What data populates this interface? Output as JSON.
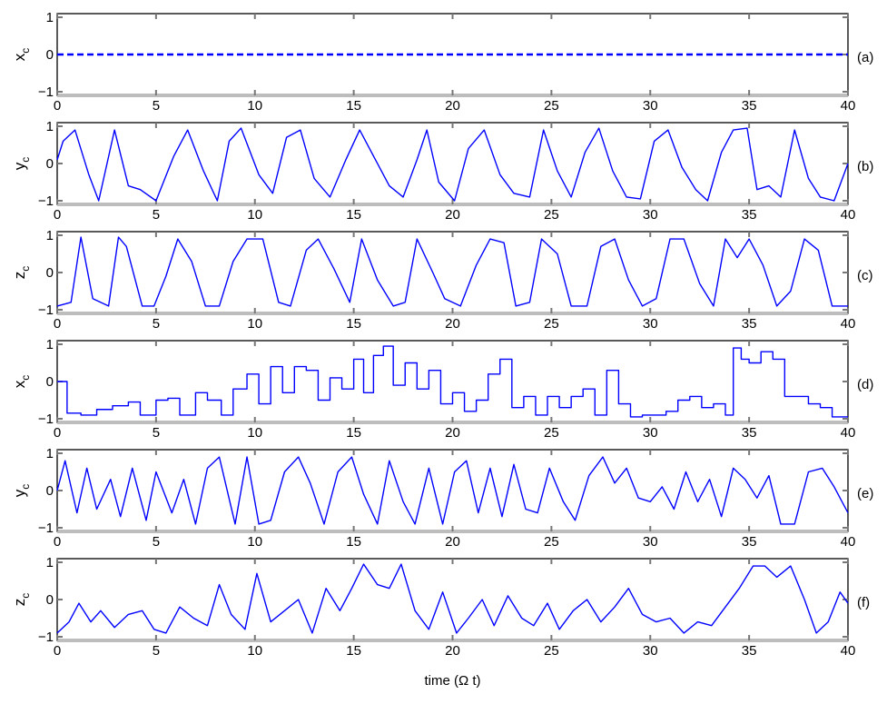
{
  "chart_data": {
    "type": "line",
    "xlabel": "time (Ω t)",
    "xlim": [
      0,
      40
    ],
    "xticks": [
      "0",
      "5",
      "10",
      "15",
      "20",
      "25",
      "30",
      "35",
      "40"
    ],
    "line_color": "#0000ff",
    "panels": [
      {
        "id": "a",
        "ylabel_main": "x",
        "ylabel_sub": "c",
        "panel_label": "(a)",
        "ylim": [
          -1,
          1
        ],
        "yticks": [
          "1",
          "0",
          "−1"
        ],
        "style": "dashed",
        "x": [
          0,
          40
        ],
        "y": [
          0,
          0
        ]
      },
      {
        "id": "b",
        "ylabel_main": "y",
        "ylabel_sub": "c",
        "panel_label": "(b)",
        "ylim": [
          -1,
          1
        ],
        "yticks": [
          "1",
          "0",
          "−1"
        ],
        "style": "solid",
        "x": [
          0,
          0.3,
          0.9,
          1.6,
          2.1,
          2.9,
          3.6,
          4.2,
          5.0,
          5.9,
          6.6,
          7.4,
          8.1,
          8.7,
          9.3,
          10.2,
          10.9,
          11.6,
          12.3,
          13.0,
          13.8,
          14.6,
          15.3,
          16.0,
          16.8,
          17.5,
          18.2,
          18.7,
          19.3,
          20.1,
          20.8,
          21.6,
          22.4,
          23.1,
          23.9,
          24.6,
          25.3,
          26.0,
          26.7,
          27.4,
          28.1,
          28.8,
          29.5,
          30.2,
          30.9,
          31.6,
          32.3,
          32.9,
          33.6,
          34.2,
          34.9,
          35.4,
          36.0,
          36.6,
          37.3,
          38.0,
          38.6,
          39.3,
          40.0
        ],
        "y": [
          0.1,
          0.6,
          0.9,
          -0.3,
          -1.0,
          0.9,
          -0.6,
          -0.7,
          -1.0,
          0.2,
          0.9,
          -0.2,
          -1.0,
          0.6,
          0.95,
          -0.3,
          -0.8,
          0.7,
          0.9,
          -0.4,
          -0.9,
          0.1,
          0.9,
          0.2,
          -0.6,
          -0.9,
          0.1,
          0.9,
          -0.5,
          -1.0,
          0.4,
          0.9,
          -0.3,
          -0.8,
          -0.9,
          0.9,
          -0.2,
          -0.9,
          0.3,
          0.95,
          -0.2,
          -0.9,
          -0.95,
          0.6,
          0.9,
          -0.1,
          -0.7,
          -1.0,
          0.3,
          0.9,
          0.95,
          -0.7,
          -0.6,
          -0.9,
          0.9,
          -0.4,
          -0.9,
          -1.0,
          0.0
        ]
      },
      {
        "id": "c",
        "ylabel_main": "z",
        "ylabel_sub": "c",
        "panel_label": "(c)",
        "ylim": [
          -1,
          1
        ],
        "yticks": [
          "1",
          "0",
          "−1"
        ],
        "style": "solid",
        "x": [
          0,
          0.7,
          1.2,
          1.8,
          2.6,
          3.1,
          3.5,
          4.3,
          4.9,
          5.5,
          6.1,
          6.8,
          7.5,
          8.2,
          8.9,
          9.6,
          10.4,
          11.2,
          11.8,
          12.6,
          13.2,
          14.0,
          14.8,
          15.4,
          16.2,
          17.0,
          17.6,
          18.2,
          19.0,
          19.6,
          20.4,
          21.2,
          21.9,
          22.6,
          23.2,
          23.9,
          24.5,
          25.3,
          26.0,
          26.8,
          27.5,
          28.2,
          28.9,
          29.6,
          30.3,
          31.0,
          31.7,
          32.5,
          33.2,
          33.8,
          34.4,
          35.0,
          35.7,
          36.4,
          37.1,
          37.8,
          38.5,
          39.2,
          40.0
        ],
        "y": [
          -0.9,
          -0.8,
          0.95,
          -0.7,
          -0.9,
          0.95,
          0.7,
          -0.9,
          -0.9,
          -0.1,
          0.9,
          0.3,
          -0.9,
          -0.9,
          0.3,
          0.9,
          0.9,
          -0.8,
          -0.9,
          0.6,
          0.9,
          0.1,
          -0.8,
          0.9,
          -0.2,
          -0.9,
          -0.8,
          0.9,
          0.0,
          -0.7,
          -0.9,
          0.2,
          0.9,
          0.8,
          -0.9,
          -0.8,
          0.9,
          0.5,
          -0.9,
          -0.9,
          0.7,
          0.9,
          -0.2,
          -0.9,
          -0.7,
          0.9,
          0.9,
          -0.3,
          -0.9,
          0.9,
          0.4,
          0.9,
          0.2,
          -0.9,
          -0.5,
          0.9,
          0.6,
          -0.9,
          -0.9
        ]
      },
      {
        "id": "d",
        "ylabel_main": "x",
        "ylabel_sub": "c",
        "panel_label": "(d)",
        "ylim": [
          -1,
          1
        ],
        "yticks": [
          "1",
          "0",
          "−1"
        ],
        "style": "step",
        "x": [
          0,
          0.5,
          1.2,
          2.0,
          2.8,
          3.6,
          4.2,
          5.0,
          5.6,
          6.2,
          7.0,
          7.6,
          8.3,
          8.9,
          9.6,
          10.2,
          10.8,
          11.4,
          12.0,
          12.6,
          13.2,
          13.8,
          14.4,
          15.0,
          15.5,
          16.0,
          16.5,
          17.0,
          17.6,
          18.2,
          18.8,
          19.4,
          20.0,
          20.6,
          21.2,
          21.8,
          22.4,
          23.0,
          23.6,
          24.2,
          24.8,
          25.4,
          26.0,
          26.6,
          27.2,
          27.8,
          28.4,
          29.0,
          29.6,
          30.2,
          30.8,
          31.4,
          32.0,
          32.6,
          33.2,
          33.8,
          34.2,
          34.6,
          35.0,
          35.6,
          36.2,
          36.8,
          37.4,
          38.0,
          38.6,
          39.2,
          39.8
        ],
        "y": [
          0.0,
          -0.85,
          -0.9,
          -0.75,
          -0.65,
          -0.55,
          -0.9,
          -0.5,
          -0.45,
          -0.9,
          -0.3,
          -0.5,
          -0.9,
          -0.2,
          0.2,
          -0.6,
          0.4,
          -0.3,
          0.4,
          0.3,
          -0.5,
          0.1,
          -0.2,
          0.6,
          -0.3,
          0.7,
          0.95,
          -0.1,
          0.5,
          -0.2,
          0.3,
          -0.6,
          -0.3,
          -0.8,
          -0.5,
          0.2,
          0.6,
          -0.7,
          -0.4,
          -0.9,
          -0.4,
          -0.7,
          -0.4,
          -0.2,
          -0.9,
          0.3,
          -0.6,
          -0.95,
          -0.9,
          -0.9,
          -0.8,
          -0.5,
          -0.4,
          -0.7,
          -0.6,
          -0.9,
          0.9,
          0.6,
          0.5,
          0.8,
          0.6,
          -0.4,
          -0.4,
          -0.6,
          -0.7,
          -0.95,
          -0.95
        ]
      },
      {
        "id": "e",
        "ylabel_main": "y",
        "ylabel_sub": "c",
        "panel_label": "(e)",
        "ylim": [
          -1,
          1
        ],
        "yticks": [
          "1",
          "0",
          "−1"
        ],
        "style": "solid",
        "x": [
          0,
          0.4,
          1.0,
          1.5,
          2.0,
          2.7,
          3.2,
          3.8,
          4.5,
          5.0,
          5.8,
          6.4,
          7.0,
          7.6,
          8.2,
          9.0,
          9.6,
          10.2,
          10.8,
          11.5,
          12.2,
          12.8,
          13.5,
          14.2,
          14.9,
          15.5,
          16.2,
          16.8,
          17.5,
          18.1,
          18.8,
          19.5,
          20.1,
          20.7,
          21.3,
          21.9,
          22.5,
          23.1,
          23.7,
          24.3,
          24.9,
          25.6,
          26.2,
          26.9,
          27.6,
          28.2,
          28.8,
          29.4,
          30.0,
          30.6,
          31.2,
          31.8,
          32.4,
          33.0,
          33.6,
          34.2,
          34.8,
          35.4,
          36.0,
          36.6,
          37.3,
          38.0,
          38.7,
          39.3,
          40.0
        ],
        "y": [
          0.0,
          0.8,
          -0.6,
          0.6,
          -0.5,
          0.3,
          -0.7,
          0.6,
          -0.8,
          0.5,
          -0.6,
          0.3,
          -0.9,
          0.6,
          0.9,
          -0.9,
          0.9,
          -0.9,
          -0.8,
          0.5,
          0.9,
          0.2,
          -0.9,
          0.5,
          0.9,
          -0.1,
          -0.9,
          0.8,
          -0.3,
          -0.9,
          0.6,
          -0.9,
          0.5,
          0.8,
          -0.6,
          0.6,
          -0.7,
          0.7,
          -0.5,
          -0.6,
          0.6,
          -0.3,
          -0.8,
          0.4,
          0.9,
          0.2,
          0.6,
          -0.2,
          -0.3,
          0.1,
          -0.5,
          0.5,
          -0.3,
          0.3,
          -0.7,
          0.6,
          0.3,
          -0.2,
          0.4,
          -0.9,
          -0.9,
          0.5,
          0.6,
          0.1,
          -0.6
        ]
      },
      {
        "id": "f",
        "ylabel_main": "z",
        "ylabel_sub": "c",
        "panel_label": "(f)",
        "ylim": [
          -1,
          1
        ],
        "yticks": [
          "1",
          "0",
          "−1"
        ],
        "style": "solid",
        "x": [
          0,
          0.6,
          1.1,
          1.7,
          2.2,
          2.9,
          3.6,
          4.3,
          4.9,
          5.5,
          6.2,
          6.9,
          7.6,
          8.2,
          8.8,
          9.5,
          10.1,
          10.8,
          11.5,
          12.2,
          12.9,
          13.6,
          14.3,
          14.9,
          15.5,
          16.2,
          16.8,
          17.4,
          18.1,
          18.8,
          19.5,
          20.2,
          20.8,
          21.5,
          22.1,
          22.8,
          23.5,
          24.1,
          24.8,
          25.4,
          26.1,
          26.8,
          27.5,
          28.2,
          28.9,
          29.6,
          30.3,
          31.0,
          31.7,
          32.4,
          33.1,
          33.8,
          34.5,
          35.2,
          35.8,
          36.4,
          37.1,
          37.8,
          38.4,
          39.0,
          39.6,
          40.0
        ],
        "y": [
          -0.9,
          -0.6,
          -0.1,
          -0.6,
          -0.3,
          -0.75,
          -0.4,
          -0.3,
          -0.8,
          -0.9,
          -0.2,
          -0.5,
          -0.7,
          0.4,
          -0.4,
          -0.8,
          0.7,
          -0.6,
          -0.3,
          0.0,
          -0.9,
          0.3,
          -0.3,
          0.3,
          0.95,
          0.4,
          0.3,
          0.95,
          -0.3,
          -0.8,
          0.2,
          -0.9,
          -0.5,
          0.0,
          -0.7,
          0.1,
          -0.5,
          -0.7,
          -0.1,
          -0.8,
          -0.3,
          0.0,
          -0.6,
          -0.2,
          0.3,
          -0.4,
          -0.6,
          -0.5,
          -0.9,
          -0.6,
          -0.7,
          -0.2,
          0.3,
          0.9,
          0.9,
          0.6,
          0.9,
          0.0,
          -0.9,
          -0.6,
          0.2,
          -0.1
        ]
      }
    ]
  }
}
